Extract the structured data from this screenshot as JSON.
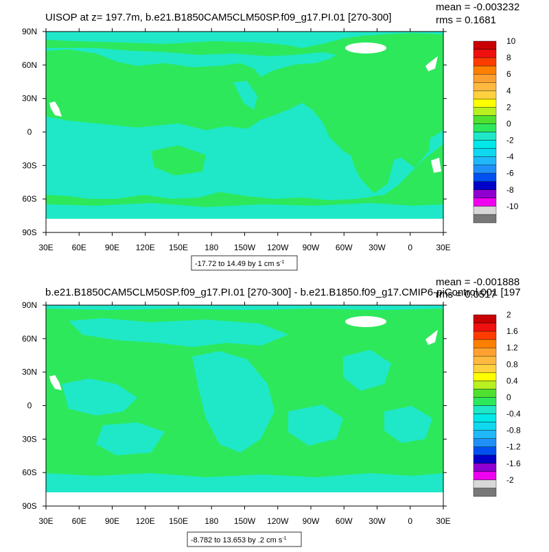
{
  "colors": {
    "land": "#2ee85c",
    "ocean": "#1ee8c8",
    "ice": "#ffffff"
  },
  "colorbar_colors": [
    "#c80000",
    "#f01010",
    "#ff3c00",
    "#ff8000",
    "#ffa030",
    "#ffb840",
    "#ffd040",
    "#ffff00",
    "#b8f020",
    "#50e030",
    "#2ee85c",
    "#1ee8c8",
    "#00e8e8",
    "#10d8f0",
    "#20b8f8",
    "#2090f8",
    "#0050f0",
    "#0000c8",
    "#9000d0",
    "#f000f0",
    "#d8d8d8",
    "#787878"
  ],
  "x_ticks": [
    "30E",
    "60E",
    "90E",
    "120E",
    "150E",
    "180",
    "150W",
    "120W",
    "90W",
    "60W",
    "30W",
    "0",
    "30E"
  ],
  "y_ticks": [
    "90N",
    "60N",
    "30N",
    "0",
    "30S",
    "60S",
    "90S"
  ],
  "panels": [
    {
      "title": "UISOP at z= 197.7m, b.e21.B1850CAM5CLM50SP.f09_g17.PI.01 [270-300]",
      "mean": "mean = -0.003232",
      "rms": "rms = 0.1681",
      "range_note": "-17.72 to 14.49 by 1 cm s",
      "range_unit_sup": "-1",
      "colorbar_labels": [
        "10",
        "8",
        "6",
        "4",
        "2",
        "0",
        "-2",
        "-4",
        "-6",
        "-8",
        "-10"
      ]
    },
    {
      "title": "b.e21.B1850CAM5CLM50SP.f09_g17.PI.01 [270-300] - b.e21.B1850.f09_g17.CMIP6-piControl.001 [197",
      "mean": "mean = -0.001888",
      "rms": "rms = 0.0517",
      "range_note": "-8.782 to 13.653 by .2 cm s",
      "range_unit_sup": "-1",
      "colorbar_labels": [
        "2",
        "1.6",
        "1.2",
        "0.8",
        "0.4",
        "0",
        "-0.4",
        "-0.8",
        "-1.2",
        "-1.6",
        "-2"
      ]
    }
  ],
  "chart_data": [
    {
      "type": "heatmap",
      "title": "UISOP at z= 197.7m, b.e21.B1850CAM5CLM50SP.f09_g17.PI.01 [270-300]",
      "mean": -0.003232,
      "rms": 0.1681,
      "value_min": -17.72,
      "value_max": 14.49,
      "contour_interval": 1,
      "units": "cm s-1",
      "xlim": [
        "30E",
        "30E"
      ],
      "ylim": [
        "90S",
        "90N"
      ],
      "colorbar_levels": [
        10,
        8,
        6,
        4,
        2,
        0,
        -2,
        -4,
        -6,
        -8,
        -10
      ],
      "dominant_levels": [
        0,
        -1
      ]
    },
    {
      "type": "heatmap",
      "title": "b.e21.B1850CAM5CLM50SP.f09_g17.PI.01 [270-300] - b.e21.B1850.f09_g17.CMIP6-piControl.001 [197",
      "mean": -0.001888,
      "rms": 0.0517,
      "value_min": -8.782,
      "value_max": 13.653,
      "contour_interval": 0.2,
      "units": "cm s-1",
      "xlim": [
        "30E",
        "30E"
      ],
      "ylim": [
        "90S",
        "90N"
      ],
      "colorbar_levels": [
        2,
        1.6,
        1.2,
        0.8,
        0.4,
        0,
        -0.4,
        -0.8,
        -1.2,
        -1.6,
        -2
      ],
      "dominant_levels": [
        0,
        -0.2
      ]
    }
  ]
}
